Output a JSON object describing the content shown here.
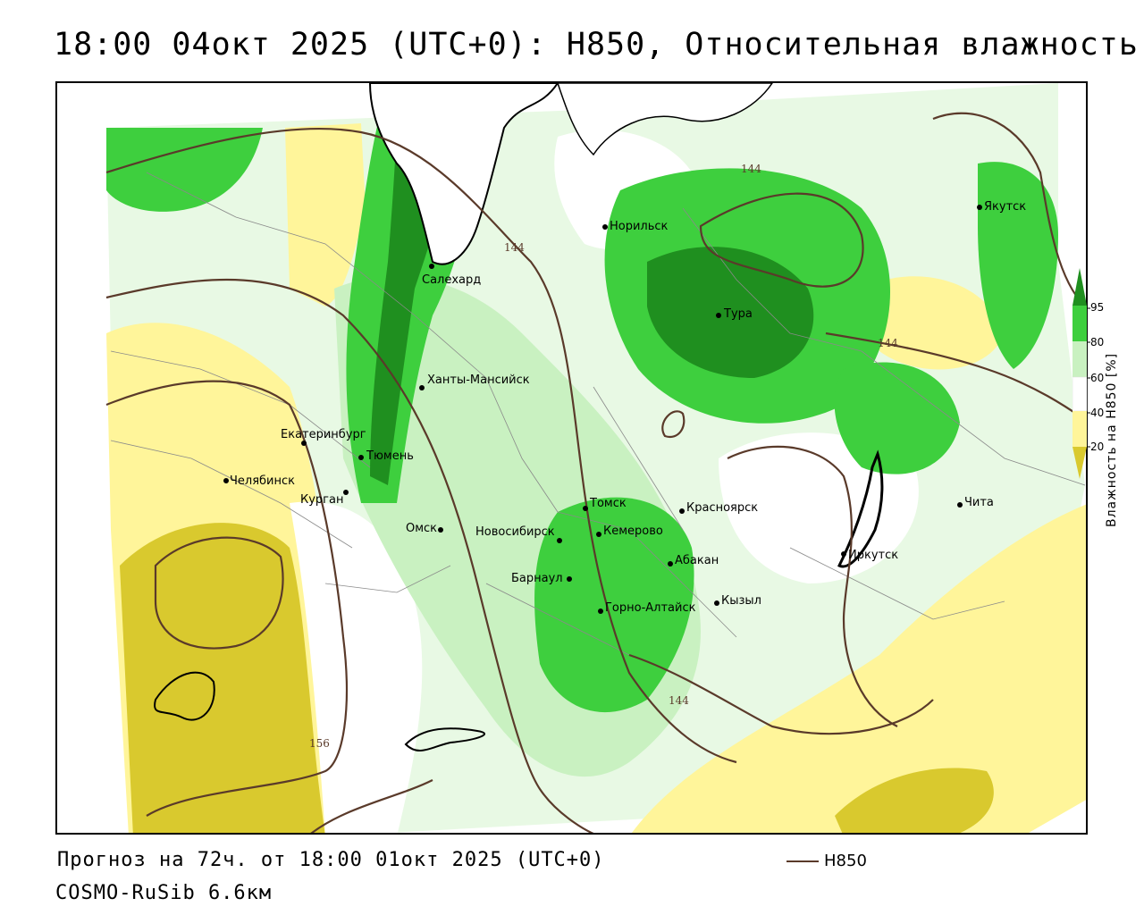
{
  "title": "18:00 04окт 2025 (UTC+0): H850, Относительная влажность",
  "forecast_line": "Прогноз на 72ч. от 18:00 01окт 2025 (UTC+0)",
  "model_line": "COSMO-RuSib 6.6км",
  "contour_legend_label": "H850",
  "legend": {
    "title": "Влажность на H850 [%]",
    "ticks": [
      "95",
      "80",
      "60",
      "40",
      "20"
    ],
    "colors": {
      "c20": "#d9c92e",
      "c40": "#fff59a",
      "c60": "#ffffff",
      "c80": "#c9f1c1",
      "c95": "#3ecf3e",
      "c100": "#1f8f1f"
    }
  },
  "contour_labels": [
    "144",
    "144",
    "144",
    "144",
    "156"
  ],
  "cities": [
    {
      "name": "Норильск"
    },
    {
      "name": "Якутск"
    },
    {
      "name": "Салехард"
    },
    {
      "name": "Тура"
    },
    {
      "name": "Ханты-Мансийск"
    },
    {
      "name": "Екатеринбург"
    },
    {
      "name": "Тюмень"
    },
    {
      "name": "Челябинск"
    },
    {
      "name": "Курган"
    },
    {
      "name": "Омск"
    },
    {
      "name": "Новосибирск"
    },
    {
      "name": "Томск"
    },
    {
      "name": "Кемерово"
    },
    {
      "name": "Красноярск"
    },
    {
      "name": "Барнаул"
    },
    {
      "name": "Абакан"
    },
    {
      "name": "Горно-Алтайск"
    },
    {
      "name": "Кызыл"
    },
    {
      "name": "Иркутск"
    },
    {
      "name": "Чита"
    }
  ]
}
